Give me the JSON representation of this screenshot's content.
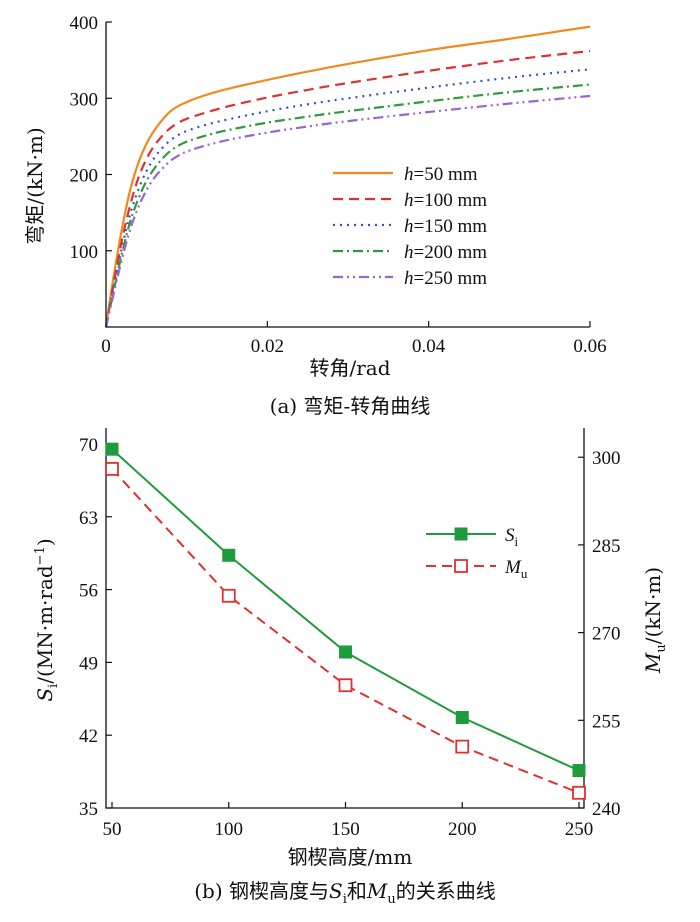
{
  "chart_data": [
    {
      "type": "line",
      "caption": "(a) 弯矩-转角曲线",
      "xlabel": "转角/rad",
      "ylabel": "弯矩/(kN·m)",
      "xlim": [
        0,
        0.06
      ],
      "ylim": [
        0,
        400
      ],
      "xticks": [
        "0",
        "0.02",
        "0.04",
        "0.06"
      ],
      "yticks": [
        "100",
        "200",
        "300",
        "400"
      ],
      "legend_position": "center-right",
      "series": [
        {
          "name_prefix": "h",
          "name_suffix": "=50 mm",
          "color": "#f08a1e",
          "dash": "solid",
          "x": [
            0,
            0.001,
            0.002,
            0.003,
            0.004,
            0.005,
            0.006,
            0.007,
            0.008,
            0.009,
            0.01,
            0.012,
            0.015,
            0.02,
            0.025,
            0.03,
            0.04,
            0.05,
            0.06
          ],
          "y": [
            0,
            70,
            130,
            180,
            215,
            240,
            258,
            272,
            283,
            290,
            295,
            303,
            312,
            324,
            335,
            345,
            363,
            378,
            394
          ]
        },
        {
          "name_prefix": "h",
          "name_suffix": "=100 mm",
          "color": "#e03030",
          "dash": "10,6",
          "x": [
            0,
            0.001,
            0.002,
            0.003,
            0.004,
            0.005,
            0.006,
            0.007,
            0.008,
            0.009,
            0.01,
            0.012,
            0.015,
            0.02,
            0.025,
            0.03,
            0.04,
            0.05,
            0.06
          ],
          "y": [
            0,
            60,
            115,
            160,
            195,
            220,
            238,
            251,
            261,
            268,
            273,
            280,
            289,
            301,
            311,
            320,
            336,
            350,
            362
          ]
        },
        {
          "name_prefix": "h",
          "name_suffix": "=150 mm",
          "color": "#3355bb",
          "dash": "2,5",
          "x": [
            0,
            0.001,
            0.002,
            0.003,
            0.004,
            0.005,
            0.006,
            0.007,
            0.008,
            0.009,
            0.01,
            0.012,
            0.015,
            0.02,
            0.025,
            0.03,
            0.04,
            0.05,
            0.06
          ],
          "y": [
            0,
            55,
            105,
            148,
            180,
            204,
            222,
            235,
            245,
            252,
            257,
            264,
            272,
            283,
            292,
            300,
            314,
            327,
            338
          ]
        },
        {
          "name_prefix": "h",
          "name_suffix": "=200 mm",
          "color": "#33993f",
          "dash": "10,4,2,4",
          "x": [
            0,
            0.001,
            0.002,
            0.003,
            0.004,
            0.005,
            0.006,
            0.007,
            0.008,
            0.009,
            0.01,
            0.012,
            0.015,
            0.02,
            0.025,
            0.03,
            0.04,
            0.05,
            0.06
          ],
          "y": [
            0,
            50,
            97,
            138,
            168,
            191,
            208,
            221,
            231,
            238,
            243,
            250,
            258,
            268,
            276,
            283,
            296,
            308,
            318
          ]
        },
        {
          "name_prefix": "h",
          "name_suffix": "=250 mm",
          "color": "#9966cc",
          "dash": "10,4,2,4,2,4",
          "x": [
            0,
            0.001,
            0.002,
            0.003,
            0.004,
            0.005,
            0.006,
            0.007,
            0.008,
            0.009,
            0.01,
            0.012,
            0.015,
            0.02,
            0.025,
            0.03,
            0.04,
            0.05,
            0.06
          ],
          "y": [
            0,
            46,
            90,
            128,
            157,
            179,
            196,
            208,
            218,
            225,
            230,
            237,
            245,
            255,
            263,
            270,
            282,
            293,
            303
          ]
        }
      ]
    },
    {
      "type": "line",
      "caption_parts": [
        "(b) 钢楔高度与",
        "S",
        "i",
        "和",
        "M",
        "u",
        "的关系曲线"
      ],
      "xlabel": "钢楔高度/mm",
      "ylabel_left": {
        "var": "S",
        "sub": "i",
        "rest": "/(MN·m·rad",
        "sup": "−1",
        "end": ")"
      },
      "ylabel_right": {
        "var": "M",
        "sub": "u",
        "rest": "/(kN·m)"
      },
      "categories": [
        50,
        100,
        150,
        200,
        250
      ],
      "xticks": [
        "50",
        "100",
        "150",
        "200",
        "250"
      ],
      "ylim_left": [
        35,
        70
      ],
      "yticks_left": [
        "35",
        "42",
        "49",
        "56",
        "63",
        "70"
      ],
      "ylim_right": [
        240,
        305
      ],
      "yticks_right": [
        "240",
        "255",
        "270",
        "285",
        "300"
      ],
      "legend_position": "top-right",
      "series": [
        {
          "name": "S",
          "name_sub": "i",
          "axis": "left",
          "color": "#1f9a3c",
          "dash": "solid",
          "marker": "filled-square",
          "values": [
            69.5,
            59.3,
            50.0,
            43.7,
            38.6
          ]
        },
        {
          "name": "M",
          "name_sub": "u",
          "axis": "right",
          "color": "#e03030",
          "dash": "10,6",
          "marker": "open-square",
          "values": [
            298.0,
            276.3,
            261.0,
            250.5,
            242.6
          ]
        }
      ]
    }
  ]
}
